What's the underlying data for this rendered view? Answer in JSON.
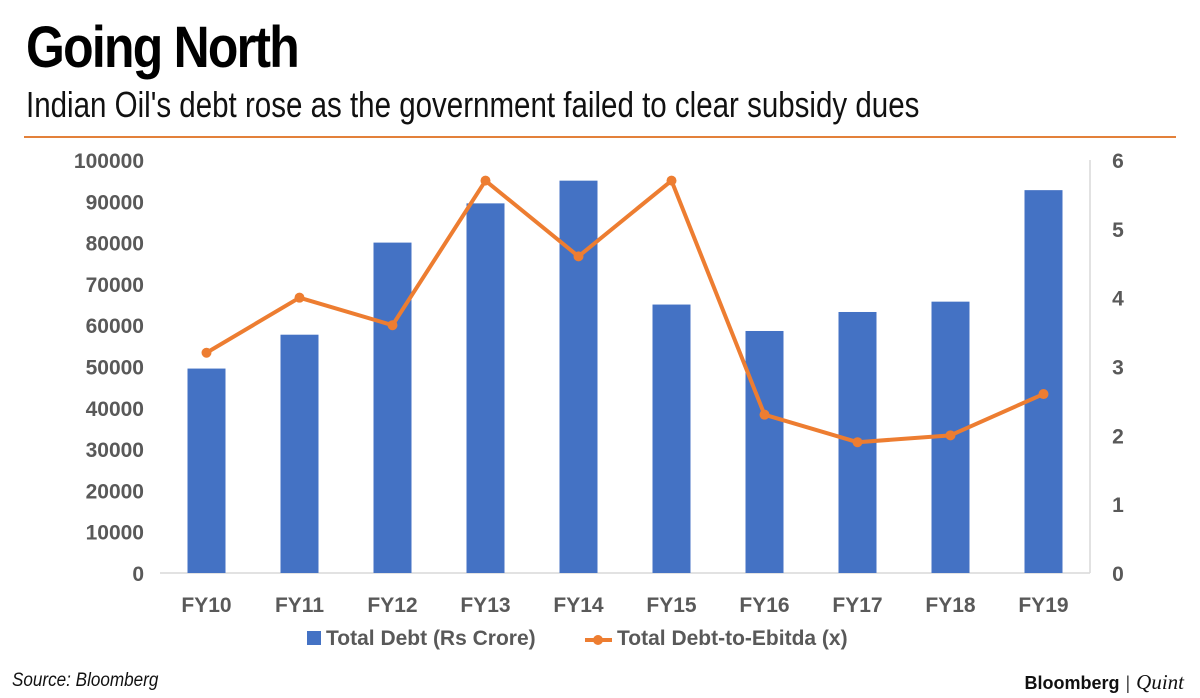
{
  "header": {
    "title": "Going North",
    "subtitle": "Indian Oil's debt rose as the government failed to clear subsidy dues"
  },
  "footer": {
    "source": "Source: Bloomberg",
    "brand_primary": "Bloomberg",
    "brand_separator": "|",
    "brand_secondary": "Quint"
  },
  "colors": {
    "bar": "#4472c4",
    "line": "#ed7d31",
    "rule": "#e3813a",
    "axis_text": "#595959",
    "gridline": "#d9d9d9"
  },
  "chart_data": {
    "type": "bar",
    "categories": [
      "FY10",
      "FY11",
      "FY12",
      "FY13",
      "FY14",
      "FY15",
      "FY16",
      "FY17",
      "FY18",
      "FY19"
    ],
    "series": [
      {
        "name": "Total Debt (Rs Crore)",
        "type": "bar",
        "axis": "left",
        "values": [
          49500,
          57700,
          80000,
          89500,
          95000,
          65000,
          58600,
          63200,
          65700,
          92700
        ]
      },
      {
        "name": "Total Debt-to-Ebitda (x)",
        "type": "line",
        "axis": "right",
        "values": [
          3.2,
          4.0,
          3.6,
          5.7,
          4.6,
          5.7,
          2.3,
          1.9,
          2.0,
          2.6
        ]
      }
    ],
    "y_left": {
      "min": 0,
      "max": 100000,
      "ticks": [
        "0",
        "10000",
        "20000",
        "30000",
        "40000",
        "50000",
        "60000",
        "70000",
        "80000",
        "90000",
        "100000"
      ]
    },
    "y_right": {
      "min": 0,
      "max": 6,
      "ticks": [
        "0",
        "1",
        "2",
        "3",
        "4",
        "5",
        "6"
      ]
    },
    "grid": false,
    "legend_position": "bottom"
  }
}
